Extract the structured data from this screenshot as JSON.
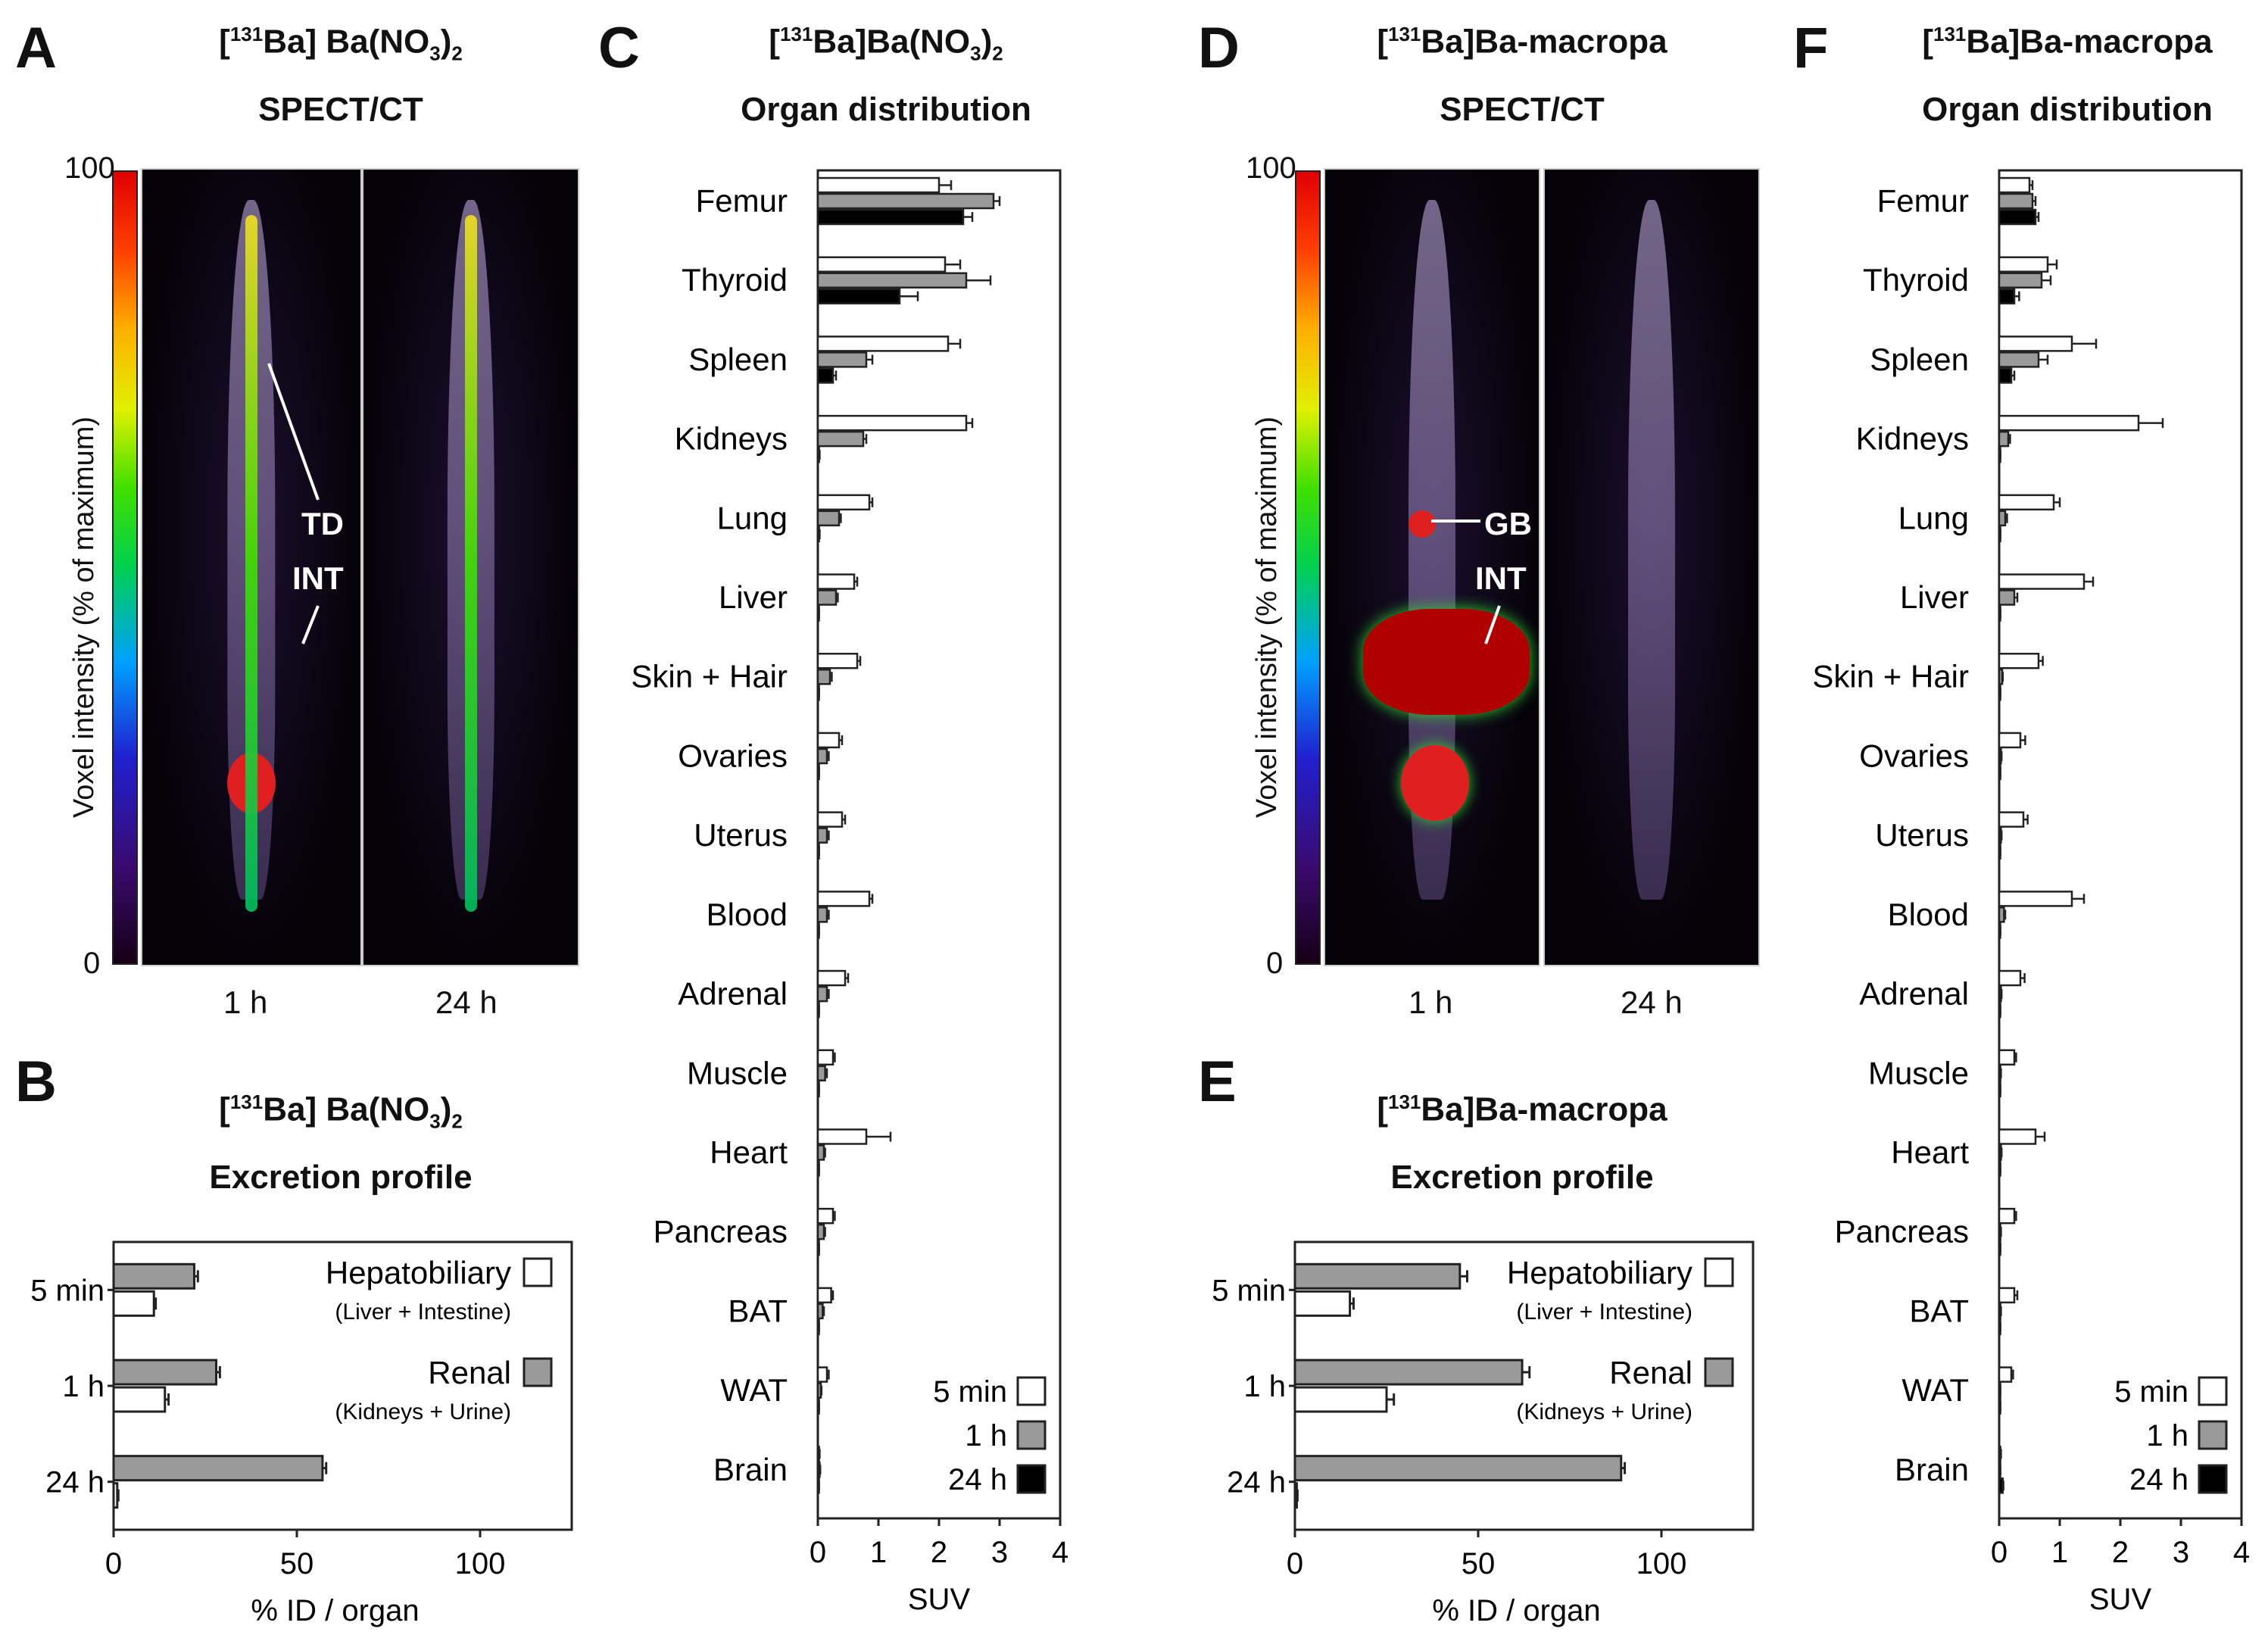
{
  "panels": {
    "A": {
      "letter": "A",
      "title_iso": "131",
      "title_main": "Ba]  Ba(NO",
      "title_sub": "3",
      "title_end": ")",
      "title_sub2": "2",
      "subtitle": "SPECT/CT",
      "time_1": "1 h",
      "time_2": "24 h",
      "annot_1": "TD",
      "annot_2": "INT"
    },
    "B": {
      "letter": "B",
      "title_iso": "131",
      "title_main": "Ba]  Ba(NO",
      "title_sub": "3",
      "title_end": ")",
      "title_sub2": "2",
      "subtitle": "Excretion profile"
    },
    "C": {
      "letter": "C",
      "title_iso": "131",
      "title_main": "Ba]Ba(NO",
      "title_sub": "3",
      "title_end": ")",
      "title_sub2": "2",
      "subtitle": "Organ distribution"
    },
    "D": {
      "letter": "D",
      "title_iso": "131",
      "title_main": "Ba]Ba-macropa",
      "subtitle": "SPECT/CT",
      "time_1": "1 h",
      "time_2": "24 h",
      "annot_1": "GB",
      "annot_2": "INT"
    },
    "E": {
      "letter": "E",
      "title_iso": "131",
      "title_main": "Ba]Ba-macropa",
      "subtitle": "Excretion profile"
    },
    "F": {
      "letter": "F",
      "title_iso": "131",
      "title_main": "Ba]Ba-macropa",
      "subtitle": "Organ distribution"
    }
  },
  "colorbar": {
    "max_label": "100",
    "min_label": "0",
    "axis_label": "Voxel intensity (% of maximum)"
  },
  "colors": {
    "t5min": "#ffffff",
    "t1h": "#9a9a9a",
    "t24h": "#000000",
    "hepato": "#ffffff",
    "renal": "#9a9a9a"
  },
  "chart_data": [
    {
      "id": "B",
      "type": "bar",
      "orientation": "horizontal",
      "categories": [
        "5 min",
        "1 h",
        "24 h"
      ],
      "series": [
        {
          "name": "Renal",
          "sublabel": "(Kidneys + Urine)",
          "values": [
            22,
            28,
            57
          ],
          "errors": [
            1,
            1,
            1
          ]
        },
        {
          "name": "Hepatobiliary",
          "sublabel": "(Liver + Intestine)",
          "values": [
            11,
            14,
            1
          ],
          "errors": [
            0.5,
            1,
            0.3
          ]
        }
      ],
      "xlabel": "% ID / organ",
      "xlim": [
        0,
        125
      ],
      "xticks": [
        0,
        50,
        100
      ]
    },
    {
      "id": "C",
      "type": "bar",
      "orientation": "horizontal",
      "categories": [
        "Femur",
        "Thyroid",
        "Spleen",
        "Kidneys",
        "Lung",
        "Liver",
        "Skin + Hair",
        "Ovaries",
        "Uterus",
        "Blood",
        "Adrenal",
        "Muscle",
        "Heart",
        "Pancreas",
        "BAT",
        "WAT",
        "Brain"
      ],
      "series": [
        {
          "name": "5 min",
          "values": [
            2.0,
            2.1,
            2.15,
            2.45,
            0.85,
            0.6,
            0.65,
            0.35,
            0.4,
            0.85,
            0.45,
            0.25,
            0.8,
            0.25,
            0.22,
            0.15,
            0.02
          ],
          "errors": [
            0.2,
            0.25,
            0.2,
            0.1,
            0.05,
            0.05,
            0.05,
            0.05,
            0.05,
            0.05,
            0.05,
            0.03,
            0.4,
            0.03,
            0.03,
            0.03,
            0.01
          ]
        },
        {
          "name": "1 h",
          "values": [
            2.9,
            2.45,
            0.8,
            0.75,
            0.35,
            0.3,
            0.2,
            0.15,
            0.15,
            0.15,
            0.15,
            0.12,
            0.1,
            0.1,
            0.08,
            0.05,
            0.03
          ],
          "errors": [
            0.1,
            0.4,
            0.1,
            0.05,
            0.03,
            0.03,
            0.03,
            0.03,
            0.03,
            0.03,
            0.03,
            0.03,
            0.02,
            0.02,
            0.02,
            0.01,
            0.01
          ]
        },
        {
          "name": "24 h",
          "values": [
            2.4,
            1.35,
            0.25,
            0.02,
            0.02,
            0.01,
            0.01,
            0.01,
            0.01,
            0.01,
            0.01,
            0.01,
            0.01,
            0.01,
            0.01,
            0.01,
            0.01
          ],
          "errors": [
            0.15,
            0.3,
            0.05,
            0.01,
            0.01,
            0.01,
            0.01,
            0.01,
            0.01,
            0.01,
            0.01,
            0.01,
            0.01,
            0.01,
            0.01,
            0.01,
            0.01
          ]
        }
      ],
      "xlabel": "SUV",
      "xlim": [
        0,
        4
      ],
      "xticks": [
        0,
        1,
        2,
        3,
        4
      ]
    },
    {
      "id": "E",
      "type": "bar",
      "orientation": "horizontal",
      "categories": [
        "5 min",
        "1 h",
        "24 h"
      ],
      "series": [
        {
          "name": "Renal",
          "sublabel": "(Kidneys + Urine)",
          "values": [
            45,
            62,
            89
          ],
          "errors": [
            2,
            2,
            1
          ]
        },
        {
          "name": "Hepatobiliary",
          "sublabel": "(Liver + Intestine)",
          "values": [
            15,
            25,
            0.5
          ],
          "errors": [
            1,
            2,
            0.2
          ]
        }
      ],
      "xlabel": "% ID / organ",
      "xlim": [
        0,
        125
      ],
      "xticks": [
        0,
        50,
        100
      ]
    },
    {
      "id": "F",
      "type": "bar",
      "orientation": "horizontal",
      "categories": [
        "Femur",
        "Thyroid",
        "Spleen",
        "Kidneys",
        "Lung",
        "Liver",
        "Skin + Hair",
        "Ovaries",
        "Uterus",
        "Blood",
        "Adrenal",
        "Muscle",
        "Heart",
        "Pancreas",
        "BAT",
        "WAT",
        "Brain"
      ],
      "series": [
        {
          "name": "5 min",
          "values": [
            0.5,
            0.8,
            1.2,
            2.3,
            0.9,
            1.4,
            0.65,
            0.35,
            0.4,
            1.2,
            0.35,
            0.25,
            0.6,
            0.25,
            0.25,
            0.2,
            0.02
          ],
          "errors": [
            0.05,
            0.15,
            0.4,
            0.4,
            0.1,
            0.15,
            0.07,
            0.08,
            0.07,
            0.2,
            0.07,
            0.03,
            0.15,
            0.03,
            0.05,
            0.03,
            0.01
          ]
        },
        {
          "name": "1 h",
          "values": [
            0.55,
            0.7,
            0.65,
            0.15,
            0.1,
            0.25,
            0.05,
            0.03,
            0.03,
            0.08,
            0.03,
            0.02,
            0.03,
            0.02,
            0.02,
            0.01,
            0.01
          ],
          "errors": [
            0.05,
            0.15,
            0.15,
            0.03,
            0.03,
            0.05,
            0.01,
            0.01,
            0.01,
            0.02,
            0.01,
            0.01,
            0.01,
            0.01,
            0.01,
            0.01,
            0.01
          ]
        },
        {
          "name": "24 h",
          "values": [
            0.6,
            0.25,
            0.2,
            0.01,
            0.01,
            0.01,
            0.01,
            0.01,
            0.01,
            0.01,
            0.01,
            0.01,
            0.01,
            0.01,
            0.01,
            0.01,
            0.06
          ],
          "errors": [
            0.05,
            0.08,
            0.05,
            0.01,
            0.01,
            0.01,
            0.01,
            0.01,
            0.01,
            0.01,
            0.01,
            0.01,
            0.01,
            0.01,
            0.01,
            0.01,
            0.01
          ]
        }
      ],
      "xlabel": "SUV",
      "xlim": [
        0,
        4
      ],
      "xticks": [
        0,
        1,
        2,
        3,
        4
      ]
    }
  ]
}
